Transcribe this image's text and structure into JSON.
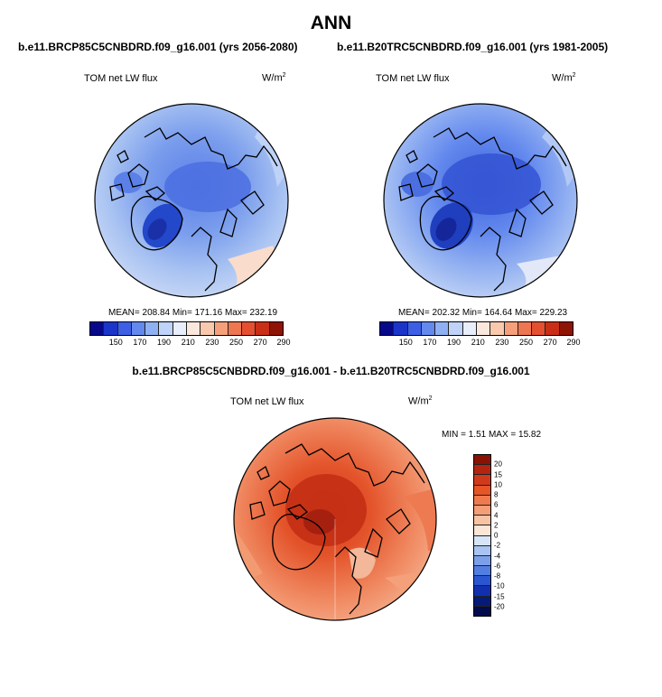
{
  "title": "ANN",
  "panels": [
    {
      "case_title": "b.e11.BRCP85C5CNBDRD.f09_g16.001 (yrs 2056-2080)",
      "field_label": "TOM net LW flux",
      "units_base": "W/m",
      "units_exp": "2",
      "stats_text": "MEAN= 208.84  Min= 171.16  Max= 232.19",
      "mean": 208.84,
      "min": 171.16,
      "max": 232.19
    },
    {
      "case_title": "b.e11.B20TRC5CNBDRD.f09_g16.001 (yrs 1981-2005)",
      "field_label": "TOM net LW flux",
      "units_base": "W/m",
      "units_exp": "2",
      "stats_text": "MEAN= 202.32  Min= 164.64  Max= 229.23",
      "mean": 202.32,
      "min": 164.64,
      "max": 229.23
    }
  ],
  "abs_colorbar": {
    "tick_labels": [
      "150",
      "170",
      "190",
      "210",
      "230",
      "250",
      "270",
      "290"
    ],
    "colors": [
      "#08088a",
      "#1c35c9",
      "#3d5fe6",
      "#6389ee",
      "#8fb0f3",
      "#bfd2f8",
      "#e9eefb",
      "#fbe8dd",
      "#f9c9ae",
      "#f5a07a",
      "#ee7650",
      "#e4502f",
      "#c82f16",
      "#8e1405"
    ]
  },
  "diff": {
    "title": "b.e11.BRCP85C5CNBDRD.f09_g16.001 - b.e11.B20TRC5CNBDRD.f09_g16.001",
    "field_label": "TOM net LW flux",
    "units_base": "W/m",
    "units_exp": "2",
    "stats_text": "MIN =   1.51 MAX =  15.82",
    "min": 1.51,
    "max": 15.82,
    "colorbar": {
      "tick_labels": [
        "20",
        "15",
        "10",
        "8",
        "6",
        "4",
        "2",
        "0",
        "-2",
        "-4",
        "-6",
        "-8",
        "-10",
        "-15",
        "-20"
      ],
      "colors": [
        "#8a1204",
        "#b42410",
        "#d1391c",
        "#e65427",
        "#ef7a4e",
        "#f49d76",
        "#f8c3a5",
        "#fbe5d6",
        "#d7e4f7",
        "#a9c3f2",
        "#7c9fea",
        "#527ee2",
        "#2b56d2",
        "#1030b0",
        "#061a78",
        "#020c4c"
      ]
    }
  }
}
